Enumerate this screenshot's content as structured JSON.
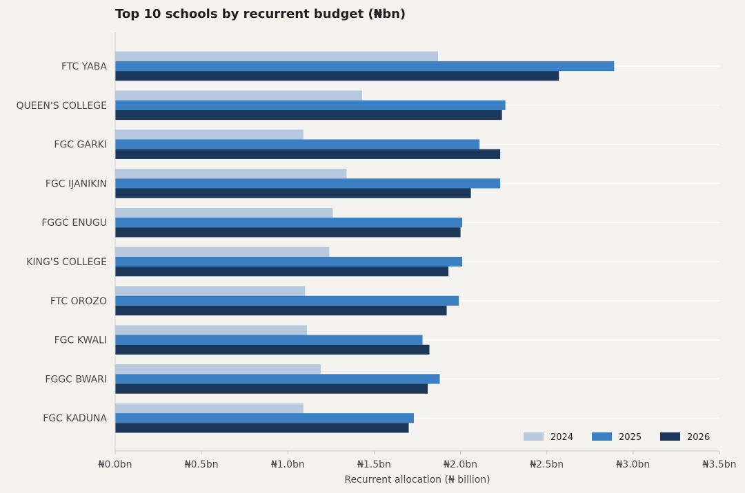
{
  "chart_data": {
    "type": "bar",
    "orientation": "horizontal",
    "title": "Top 10 schools by recurrent budget (₦bn)",
    "xlabel": "Recurrent allocation (₦ billion)",
    "ylabel": "",
    "xlim": [
      0,
      3.5
    ],
    "x_ticks": [
      0,
      0.5,
      1.0,
      1.5,
      2.0,
      2.5,
      3.0,
      3.5
    ],
    "x_tick_labels": [
      "₦0.0bn",
      "₦0.5bn",
      "₦1.0bn",
      "₦1.5bn",
      "₦2.0bn",
      "₦2.5bn",
      "₦3.0bn",
      "₦3.5bn"
    ],
    "grid": "vertical-off-horizontal-on",
    "legend_position": "bottom-right",
    "categories": [
      "FTC YABA",
      "QUEEN'S COLLEGE",
      "FGC GARKI",
      "FGC IJANIKIN",
      "FGGC ENUGU",
      "KING'S COLLEGE",
      "FTC OROZO",
      "FGC KWALI",
      "FGGC BWARI",
      "FGC KADUNA"
    ],
    "series": [
      {
        "name": "2024",
        "color": "#b7c9de",
        "values": [
          1.87,
          1.43,
          1.09,
          1.34,
          1.26,
          1.24,
          1.1,
          1.11,
          1.19,
          1.09
        ]
      },
      {
        "name": "2025",
        "color": "#3a80c3",
        "values": [
          2.89,
          2.26,
          2.11,
          2.23,
          2.01,
          2.01,
          1.99,
          1.78,
          1.88,
          1.73
        ]
      },
      {
        "name": "2026",
        "color": "#1b375a",
        "values": [
          2.57,
          2.24,
          2.23,
          2.06,
          2.0,
          1.93,
          1.92,
          1.82,
          1.81,
          1.7
        ]
      }
    ]
  }
}
